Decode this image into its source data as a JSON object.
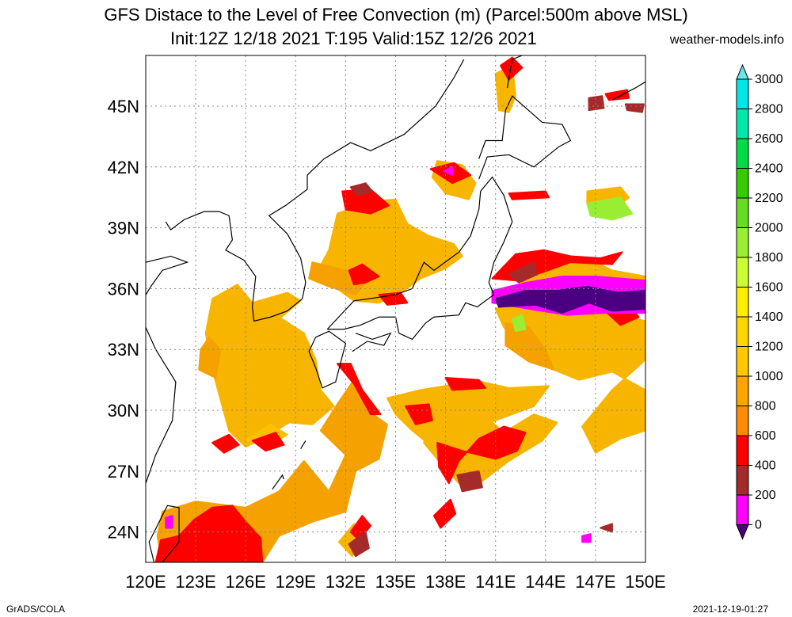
{
  "title": {
    "line1": "GFS Distace to the Level of Free Convection (m) (Parcel:500m above MSL)",
    "line2": "Init:12Z 12/18 2021 T:195 Valid:15Z 12/26 2021",
    "site": "weather-models.info"
  },
  "footer": {
    "left": "GrADS/COLA",
    "right": "2021-12-19-01:27"
  },
  "axes": {
    "lon_labels": [
      "120E",
      "123E",
      "126E",
      "129E",
      "132E",
      "135E",
      "138E",
      "141E",
      "144E",
      "147E",
      "150E"
    ],
    "lat_labels": [
      "24N",
      "27N",
      "30N",
      "33N",
      "36N",
      "39N",
      "42N",
      "45N"
    ],
    "lon_range": [
      120,
      150
    ],
    "lat_range": [
      22.5,
      47.5
    ]
  },
  "colorbar": {
    "levels": [
      "0",
      "200",
      "400",
      "600",
      "800",
      "1000",
      "1200",
      "1400",
      "1600",
      "1800",
      "2000",
      "2200",
      "2400",
      "2600",
      "2800",
      "3000"
    ],
    "colors": [
      "#4b0082",
      "#ff00ff",
      "#a52a2a",
      "#ff0000",
      "#ff8c00",
      "#ffa500",
      "#ffc800",
      "#ffd700",
      "#ffee00",
      "#ccff33",
      "#99ee33",
      "#66dd22",
      "#33cc00",
      "#00dd44",
      "#00e8aa",
      "#00e6e6"
    ],
    "below_color": "#4b0082",
    "above_color": "#66e6e6"
  },
  "field_colors": {
    "orange": "#f5a200",
    "orange_light": "#f7b500",
    "yellow_orange": "#fbc100",
    "red": "#ff0000",
    "brown": "#a52a2a",
    "magenta": "#ff00ff",
    "indigo": "#4b0082",
    "lime": "#99ee33"
  }
}
